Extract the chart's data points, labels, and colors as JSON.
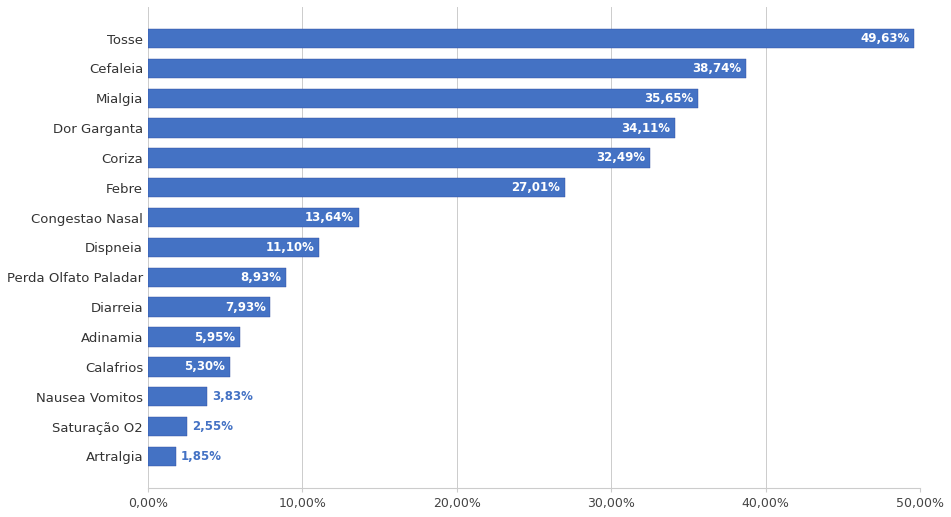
{
  "categories": [
    "Artralgia",
    "Saturação O2",
    "Nausea Vomitos",
    "Calafrios",
    "Adinamia",
    "Diarreia",
    "Perda Olfato Paladar",
    "Dispneia",
    "Congestao Nasal",
    "Febre",
    "Coriza",
    "Dor Garganta",
    "Mialgia",
    "Cefaleia",
    "Tosse"
  ],
  "values": [
    1.85,
    2.55,
    3.83,
    5.3,
    5.95,
    7.93,
    8.93,
    11.1,
    13.64,
    27.01,
    32.49,
    34.11,
    35.65,
    38.74,
    49.63
  ],
  "labels": [
    "1,85%",
    "2,55%",
    "3,83%",
    "5,30%",
    "5,95%",
    "7,93%",
    "8,93%",
    "11,10%",
    "13,64%",
    "27,01%",
    "32,49%",
    "34,11%",
    "35,65%",
    "38,74%",
    "49,63%"
  ],
  "bar_color_main": "#4472C4",
  "bar_color_dark": "#2E4A9E",
  "label_color_small": "#4472C4",
  "label_color_large": "#ffffff",
  "background_color": "#ffffff",
  "grid_color": "#cccccc",
  "xlim": [
    0,
    50
  ],
  "xticks": [
    0,
    10,
    20,
    30,
    40,
    50
  ],
  "xtick_labels": [
    "0,00%",
    "10,00%",
    "20,00%",
    "30,00%",
    "40,00%",
    "50,00%"
  ],
  "label_threshold": 5.0,
  "figsize": [
    9.51,
    5.17
  ],
  "dpi": 100
}
